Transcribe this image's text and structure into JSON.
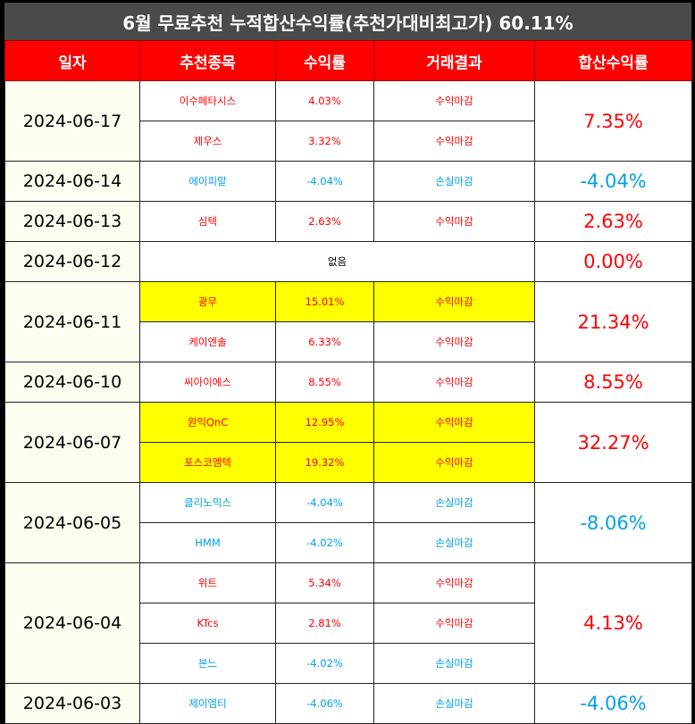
{
  "title": "6월 무료추천 누적합산수익률(추천가대비최고가) 60.11%",
  "headers": [
    "일자",
    "추천종목",
    "수익률",
    "거래결과",
    "합산수익률"
  ],
  "colors": {
    "header_bg": "#ff0000",
    "gain": "#ff0000",
    "loss": "#00a0e9",
    "highlight": "#ffff00",
    "date_bg": "#fefdf0"
  },
  "groups": [
    {
      "date": "2024-06-17",
      "total": "7.35%",
      "total_color": "red",
      "rows": [
        {
          "stock": "이수페타시스",
          "return": "4.03%",
          "result": "수익마감",
          "color": "red",
          "hl": false
        },
        {
          "stock": "제우스",
          "return": "3.32%",
          "result": "수익마감",
          "color": "red",
          "hl": false
        }
      ]
    },
    {
      "date": "2024-06-14",
      "total": "-4.04%",
      "total_color": "blue",
      "rows": [
        {
          "stock": "에이피알",
          "return": "-4.04%",
          "result": "손실마감",
          "color": "blue",
          "hl": false
        }
      ]
    },
    {
      "date": "2024-06-13",
      "total": "2.63%",
      "total_color": "red",
      "rows": [
        {
          "stock": "심텍",
          "return": "2.63%",
          "result": "수익마감",
          "color": "red",
          "hl": false
        }
      ]
    },
    {
      "date": "2024-06-12",
      "total": "0.00%",
      "total_color": "red",
      "none": "없음",
      "rows": []
    },
    {
      "date": "2024-06-11",
      "total": "21.34%",
      "total_color": "red",
      "rows": [
        {
          "stock": "광무",
          "return": "15.01%",
          "result": "수익마감",
          "color": "red",
          "hl": true
        },
        {
          "stock": "케이엔솔",
          "return": "6.33%",
          "result": "수익마감",
          "color": "red",
          "hl": false
        }
      ]
    },
    {
      "date": "2024-06-10",
      "total": "8.55%",
      "total_color": "red",
      "rows": [
        {
          "stock": "씨아이에스",
          "return": "8.55%",
          "result": "수익마감",
          "color": "red",
          "hl": false
        }
      ]
    },
    {
      "date": "2024-06-07",
      "total": "32.27%",
      "total_color": "red",
      "rows": [
        {
          "stock": "원익QnC",
          "return": "12.95%",
          "result": "수익마감",
          "color": "red",
          "hl": true
        },
        {
          "stock": "포스코엠텍",
          "return": "19.32%",
          "result": "수익마감",
          "color": "red",
          "hl": true
        }
      ]
    },
    {
      "date": "2024-06-05",
      "total": "-8.06%",
      "total_color": "blue",
      "rows": [
        {
          "stock": "클리노믹스",
          "return": "-4.04%",
          "result": "손실마감",
          "color": "blue",
          "hl": false
        },
        {
          "stock": "HMM",
          "return": "-4.02%",
          "result": "손실마감",
          "color": "blue",
          "hl": false
        }
      ]
    },
    {
      "date": "2024-06-04",
      "total": "4.13%",
      "total_color": "red",
      "rows": [
        {
          "stock": "위트",
          "return": "5.34%",
          "result": "수익마감",
          "color": "red",
          "hl": false
        },
        {
          "stock": "KTcs",
          "return": "2.81%",
          "result": "수익마감",
          "color": "red",
          "hl": false
        },
        {
          "stock": "본느",
          "return": "-4.02%",
          "result": "손실마감",
          "color": "blue",
          "hl": false
        }
      ]
    },
    {
      "date": "2024-06-03",
      "total": "-4.06%",
      "total_color": "blue",
      "rows": [
        {
          "stock": "제이엠티",
          "return": "-4.06%",
          "result": "손실마감",
          "color": "blue",
          "hl": false
        }
      ]
    }
  ]
}
